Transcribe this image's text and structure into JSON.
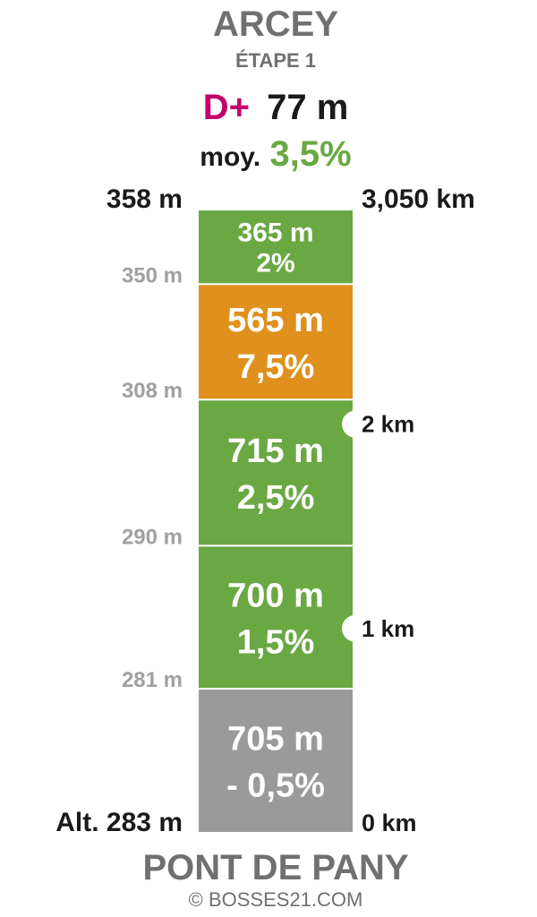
{
  "header": {
    "destination": "ARCEY",
    "stage": "ÉTAPE 1",
    "dplus_label": "D+",
    "dplus_value": "77 m",
    "avg_label": "moy.",
    "avg_value": "3,5%"
  },
  "footer": {
    "origin": "PONT DE PANY",
    "credit": "© BOSSES21.COM"
  },
  "colors": {
    "green": "#6aa843",
    "orange": "#df901d",
    "gray": "#9b9a9a",
    "magenta": "#c4006f",
    "title_gray": "#707070",
    "label_gray": "#a0a0a0",
    "text_dark": "#1a1a1a"
  },
  "chart_data": {
    "type": "bar",
    "orientation": "vertical-stacked",
    "top_altitude_label": "358 m",
    "top_distance_label": "3,050 km",
    "start_altitude_label": "Alt. 283 m",
    "start_distance_label": "0 km",
    "segments": [
      {
        "length_m": 705,
        "length_label": "705 m",
        "grade_label": "- 0,5%",
        "grade": -0.5,
        "color": "gray",
        "end_altitude_label": "281 m"
      },
      {
        "length_m": 700,
        "length_label": "700 m",
        "grade_label": "1,5%",
        "grade": 1.5,
        "color": "green",
        "end_altitude_label": "290 m"
      },
      {
        "length_m": 715,
        "length_label": "715 m",
        "grade_label": "2,5%",
        "grade": 2.5,
        "color": "green",
        "end_altitude_label": "308 m"
      },
      {
        "length_m": 565,
        "length_label": "565 m",
        "grade_label": "7,5%",
        "grade": 7.5,
        "color": "orange",
        "end_altitude_label": "350 m"
      },
      {
        "length_m": 365,
        "length_label": "365 m",
        "grade_label": "2%",
        "grade": 2,
        "color": "green",
        "end_altitude_label": ""
      }
    ],
    "km_markers": [
      {
        "km": 1,
        "label": "1 km"
      },
      {
        "km": 2,
        "label": "2 km"
      }
    ]
  }
}
